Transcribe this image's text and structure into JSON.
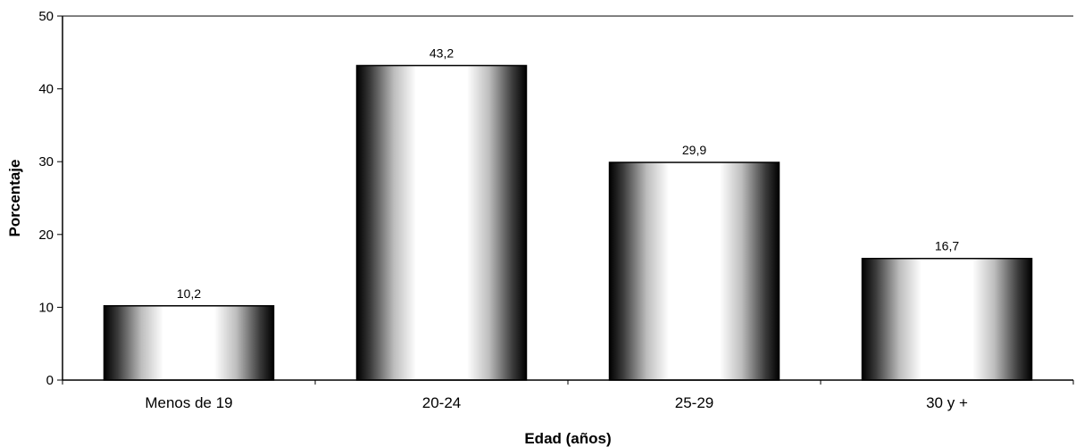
{
  "chart_data": {
    "type": "bar",
    "title": "",
    "xlabel": "Edad (años)",
    "ylabel": "Porcentaje",
    "categories": [
      "Menos de 19",
      "20-24",
      "25-29",
      "30 y +"
    ],
    "values": [
      10.2,
      43.2,
      29.9,
      16.7
    ],
    "value_labels": [
      "10,2",
      "43,2",
      "29,9",
      "16,7"
    ],
    "ylim": [
      0,
      50
    ],
    "yticks": [
      0,
      10,
      20,
      30,
      40,
      50
    ],
    "ytick_labels": [
      "0",
      "10",
      "20",
      "30",
      "40",
      "50"
    ],
    "grid": false,
    "legend": "none",
    "colors": {
      "bar_edge": "#000000",
      "bar_center": "#ffffff",
      "bar_shade": "#000000"
    }
  }
}
